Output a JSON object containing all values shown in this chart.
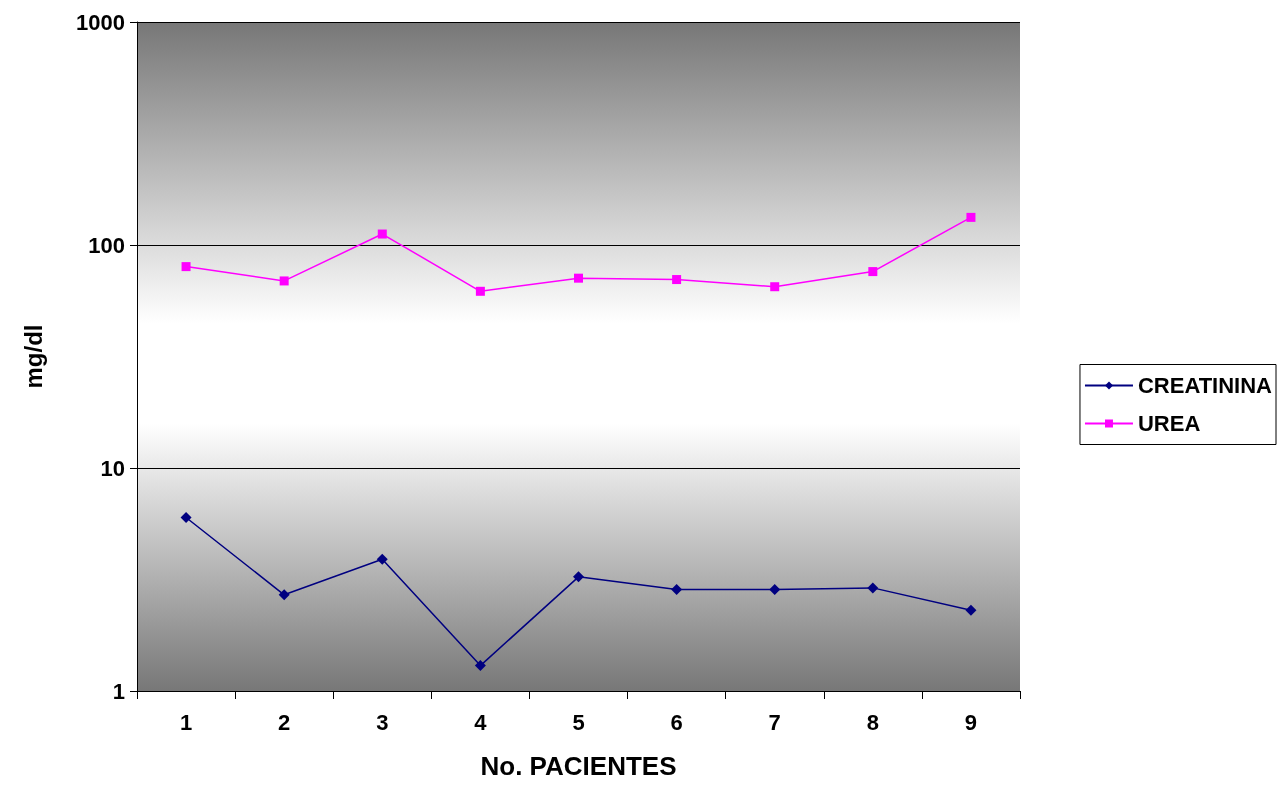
{
  "chart_data": {
    "type": "line",
    "xlabel": "No. PACIENTES",
    "ylabel": "mg/dl",
    "categories": [
      "1",
      "2",
      "3",
      "4",
      "5",
      "6",
      "7",
      "8",
      "9"
    ],
    "series": [
      {
        "name": "CREATININA",
        "color": "#000080",
        "marker": "diamond",
        "values": [
          6.0,
          2.7,
          3.9,
          1.3,
          3.25,
          2.85,
          2.85,
          2.9,
          2.3
        ]
      },
      {
        "name": "UREA",
        "color": "#ff00ff",
        "marker": "square",
        "values": [
          80,
          69,
          112,
          62,
          71,
          70,
          65,
          76,
          133
        ]
      }
    ],
    "log": "y",
    "ylim": [
      1,
      1000
    ],
    "yticks": [
      1,
      10,
      100,
      1000
    ],
    "grid": "y",
    "legend": "right"
  }
}
